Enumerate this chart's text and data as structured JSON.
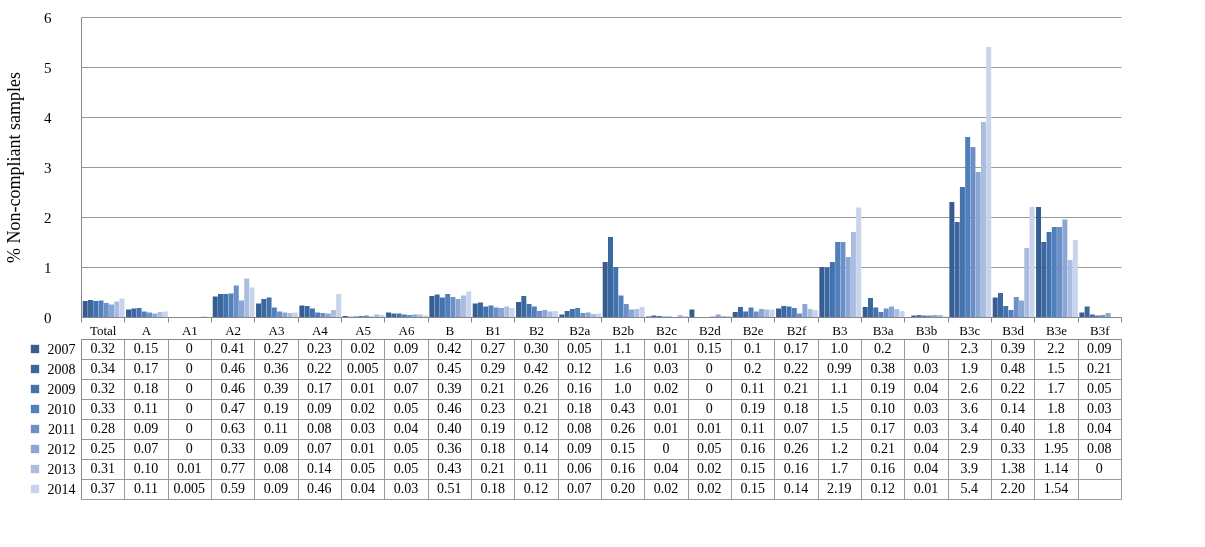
{
  "chart_data": {
    "type": "bar",
    "ylabel": "% Non-compliant samples",
    "categories": [
      "Total",
      "A",
      "A1",
      "A2",
      "A3",
      "A4",
      "A5",
      "A6",
      "B",
      "B1",
      "B2",
      "B2a",
      "B2b",
      "B2c",
      "B2d",
      "B2e",
      "B2f",
      "B3",
      "B3a",
      "B3b",
      "B3c",
      "B3d",
      "B3e",
      "B3f"
    ],
    "ylim": [
      0,
      6
    ],
    "yticks": [
      0,
      1,
      2,
      3,
      4,
      5,
      6
    ],
    "grid": "y",
    "legend": "bottom left",
    "series": [
      {
        "name": "2007",
        "color": "#355d8f",
        "values": [
          0.32,
          0.15,
          0,
          0.41,
          0.27,
          0.23,
          0.02,
          0.09,
          0.42,
          0.27,
          0.3,
          0.05,
          1.1,
          0.01,
          0.15,
          0.1,
          0.17,
          1.0,
          0.2,
          0,
          2.3,
          0.39,
          2.2,
          0.09
        ],
        "value_labels": [
          "0.32",
          "0.15",
          "0",
          "0.41",
          "0.27",
          "0.23",
          "0.02",
          "0.09",
          "0.42",
          "0.27",
          "0.30",
          "0.05",
          "1.1",
          "0.01",
          "0.15",
          "0.1",
          "0.17",
          "1.0",
          "0.2",
          "0",
          "2.3",
          "0.39",
          "2.2",
          "0.09"
        ]
      },
      {
        "name": "2008",
        "color": "#3b67a0",
        "values": [
          0.34,
          0.17,
          0,
          0.46,
          0.36,
          0.22,
          0.005,
          0.07,
          0.45,
          0.29,
          0.42,
          0.12,
          1.6,
          0.03,
          0,
          0.2,
          0.22,
          0.99,
          0.38,
          0.03,
          1.9,
          0.48,
          1.5,
          0.21
        ],
        "value_labels": [
          "0.34",
          "0.17",
          "0",
          "0.46",
          "0.36",
          "0.22",
          "0.005",
          "0.07",
          "0.45",
          "0.29",
          "0.42",
          "0.12",
          "1.6",
          "0.03",
          "0",
          "0.2",
          "0.22",
          "0.99",
          "0.38",
          "0.03",
          "1.9",
          "0.48",
          "1.5",
          "0.21"
        ]
      },
      {
        "name": "2009",
        "color": "#4372ae",
        "values": [
          0.32,
          0.18,
          0,
          0.46,
          0.39,
          0.17,
          0.01,
          0.07,
          0.39,
          0.21,
          0.26,
          0.16,
          1.0,
          0.02,
          0,
          0.11,
          0.21,
          1.1,
          0.19,
          0.04,
          2.6,
          0.22,
          1.7,
          0.05
        ],
        "value_labels": [
          "0.32",
          "0.18",
          "0",
          "0.46",
          "0.39",
          "0.17",
          "0.01",
          "0.07",
          "0.39",
          "0.21",
          "0.26",
          "0.16",
          "1.0",
          "0.02",
          "0",
          "0.11",
          "0.21",
          "1.1",
          "0.19",
          "0.04",
          "2.6",
          "0.22",
          "1.7",
          "0.05"
        ]
      },
      {
        "name": "2010",
        "color": "#4f7fbc",
        "values": [
          0.33,
          0.11,
          0,
          0.47,
          0.19,
          0.09,
          0.02,
          0.05,
          0.46,
          0.23,
          0.21,
          0.18,
          0.43,
          0.01,
          0,
          0.19,
          0.18,
          1.5,
          0.1,
          0.03,
          3.6,
          0.14,
          1.8,
          0.03
        ],
        "value_labels": [
          "0.33",
          "0.11",
          "0",
          "0.47",
          "0.19",
          "0.09",
          "0.02",
          "0.05",
          "0.46",
          "0.23",
          "0.21",
          "0.18",
          "0.43",
          "0.01",
          "0",
          "0.19",
          "0.18",
          "1.5",
          "0.10",
          "0.03",
          "3.6",
          "0.14",
          "1.8",
          "0.03"
        ]
      },
      {
        "name": "2011",
        "color": "#6b8fc6",
        "values": [
          0.28,
          0.09,
          0,
          0.63,
          0.11,
          0.08,
          0.03,
          0.04,
          0.4,
          0.19,
          0.12,
          0.08,
          0.26,
          0.01,
          0.01,
          0.11,
          0.07,
          1.5,
          0.17,
          0.03,
          3.4,
          0.4,
          1.8,
          0.04
        ],
        "value_labels": [
          "0.28",
          "0.09",
          "0",
          "0.63",
          "0.11",
          "0.08",
          "0.03",
          "0.04",
          "0.40",
          "0.19",
          "0.12",
          "0.08",
          "0.26",
          "0.01",
          "0.01",
          "0.11",
          "0.07",
          "1.5",
          "0.17",
          "0.03",
          "3.4",
          "0.40",
          "1.8",
          "0.04"
        ]
      },
      {
        "name": "2012",
        "color": "#8aa6d4",
        "values": [
          0.25,
          0.07,
          0,
          0.33,
          0.09,
          0.07,
          0.01,
          0.05,
          0.36,
          0.18,
          0.14,
          0.09,
          0.15,
          0,
          0.05,
          0.16,
          0.26,
          1.2,
          0.21,
          0.04,
          2.9,
          0.33,
          1.95,
          0.08
        ],
        "value_labels": [
          "0.25",
          "0.07",
          "0",
          "0.33",
          "0.09",
          "0.07",
          "0.01",
          "0.05",
          "0.36",
          "0.18",
          "0.14",
          "0.09",
          "0.15",
          "0",
          "0.05",
          "0.16",
          "0.26",
          "1.2",
          "0.21",
          "0.04",
          "2.9",
          "0.33",
          "1.95",
          "0.08"
        ]
      },
      {
        "name": "2013",
        "color": "#aabde0",
        "values": [
          0.31,
          0.1,
          0.01,
          0.77,
          0.08,
          0.14,
          0.05,
          0.05,
          0.43,
          0.21,
          0.11,
          0.06,
          0.16,
          0.04,
          0.02,
          0.15,
          0.16,
          1.7,
          0.16,
          0.04,
          3.9,
          1.38,
          1.14,
          0
        ],
        "value_labels": [
          "0.31",
          "0.10",
          "0.01",
          "0.77",
          "0.08",
          "0.14",
          "0.05",
          "0.05",
          "0.43",
          "0.21",
          "0.11",
          "0.06",
          "0.16",
          "0.04",
          "0.02",
          "0.15",
          "0.16",
          "1.7",
          "0.16",
          "0.04",
          "3.9",
          "1.38",
          "1.14",
          "0"
        ]
      },
      {
        "name": "2014",
        "color": "#c8d4eb",
        "values": [
          0.37,
          0.11,
          0.005,
          0.59,
          0.09,
          0.46,
          0.04,
          0.03,
          0.51,
          0.18,
          0.12,
          0.07,
          0.2,
          0.02,
          0.02,
          0.15,
          0.14,
          2.19,
          0.12,
          0.01,
          5.4,
          2.2,
          1.54,
          null
        ],
        "value_labels": [
          "0.37",
          "0.11",
          "0.005",
          "0.59",
          "0.09",
          "0.46",
          "0.04",
          "0.03",
          "0.51",
          "0.18",
          "0.12",
          "0.07",
          "0.20",
          "0.02",
          "0.02",
          "0.15",
          "0.14",
          "2.19",
          "0.12",
          "0.01",
          "5.4",
          "2.20",
          "1.54",
          null
        ]
      }
    ]
  }
}
